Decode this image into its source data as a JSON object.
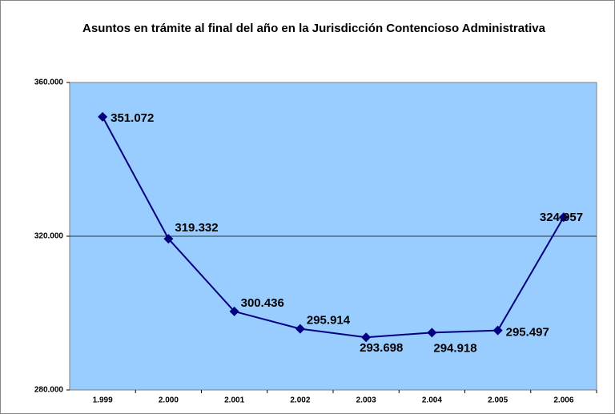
{
  "chart_data": {
    "type": "line",
    "title": "Asuntos en trámite al final del año en la Jurisdicción Contencioso Administrativa",
    "categories": [
      "1.999",
      "2.000",
      "2.001",
      "2.002",
      "2.003",
      "2.004",
      "2.005",
      "2.006"
    ],
    "series": [
      {
        "name": "Asuntos en trámite",
        "color": "#000080",
        "values": [
          351072,
          319332,
          300436,
          295914,
          293698,
          294918,
          295497,
          324957
        ],
        "value_labels": [
          "351.072",
          "319.332",
          "300.436",
          "295.914",
          "293.698",
          "294.918",
          "295.497",
          "324.957"
        ]
      }
    ],
    "ylim": [
      280000,
      360000
    ],
    "yticks": [
      {
        "value": 280000,
        "label": "280.000"
      },
      {
        "value": 320000,
        "label": "320.000"
      },
      {
        "value": 360000,
        "label": "360.000"
      }
    ],
    "grid": true,
    "plot_background": "#99ccff"
  }
}
